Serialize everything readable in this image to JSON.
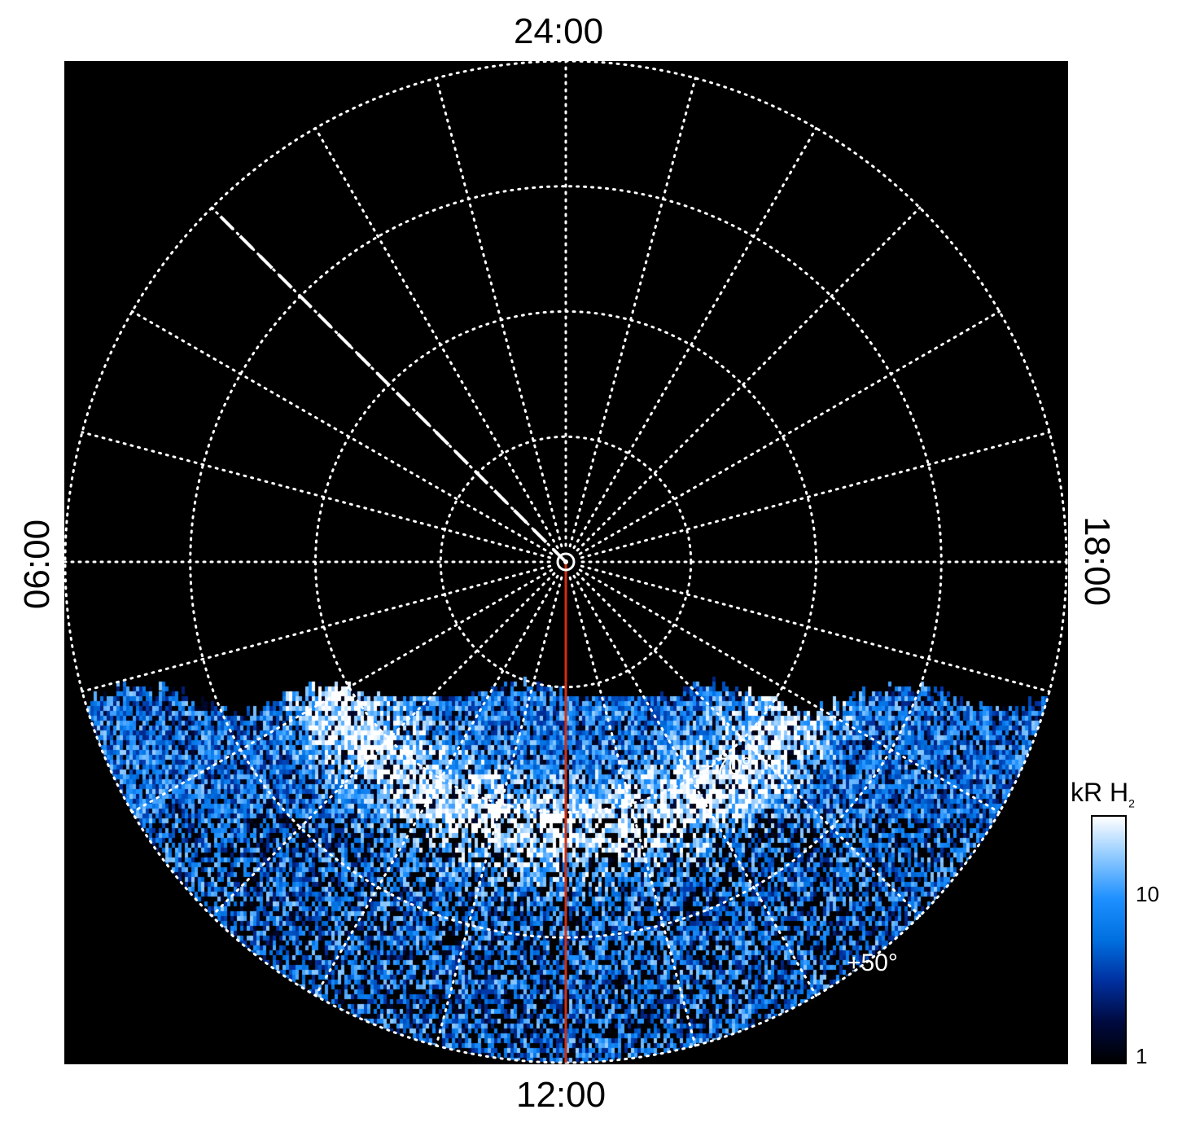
{
  "chart_data": {
    "type": "heatmap",
    "projection": "polar",
    "title": "",
    "local_time_labels": {
      "top": "24:00",
      "left": "06:00",
      "right": "18:00",
      "bottom": "12:00"
    },
    "latitude_circles": [
      80,
      70,
      60,
      50
    ],
    "latitude_labels": [
      "+70°",
      "+50°"
    ],
    "radial_spokes_hours": 1,
    "grid": true,
    "colorbar": {
      "label": "kR H",
      "label_subscript": "2",
      "scale": "log",
      "range": [
        1,
        30
      ],
      "ticks": [
        "1",
        "10"
      ]
    },
    "colormap": [
      "#000000",
      "#000a40",
      "#0030a0",
      "#0070e0",
      "#1e90ff",
      "#8cc8ff",
      "#ffffff"
    ],
    "reference_lines": [
      {
        "style": "solid",
        "color": "#d03010",
        "local_time": "12:00"
      },
      {
        "style": "dashed",
        "color": "#ffffff",
        "local_time": "03:00"
      }
    ],
    "data_coverage": "dayside, latitudes below ~78°"
  }
}
